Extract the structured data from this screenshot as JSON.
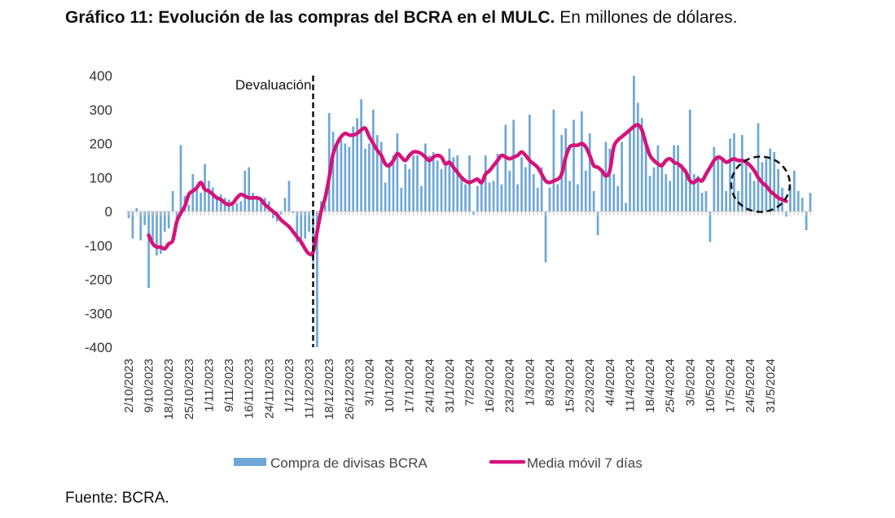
{
  "title": {
    "bold": "Gráfico 11: Evolución de las compras del BCRA en el MULC.",
    "normal": "En millones de dólares."
  },
  "source": "Fuente: BCRA.",
  "chart_data": {
    "type": "bar+line",
    "ylim": [
      -400,
      400
    ],
    "yticks": [
      400,
      300,
      200,
      100,
      0,
      -100,
      -200,
      -300,
      -400
    ],
    "grid": false,
    "legend_position": "bottom",
    "xtick_labels": [
      "2/10/2023",
      "9/10/2023",
      "18/10/2023",
      "25/10/2023",
      "1/11/2023",
      "9/11/2023",
      "16/11/2023",
      "24/11/2023",
      "1/12/2023",
      "11/12/2023",
      "18/12/2023",
      "26/12/2023",
      "3/1/2024",
      "10/1/2024",
      "17/1/2024",
      "24/1/2024",
      "31/1/2024",
      "7/2/2024",
      "16/2/2024",
      "23/2/2024",
      "1/3/2024",
      "8/3/2024",
      "15/3/2024",
      "22/3/2024",
      "4/4/2024",
      "11/4/2024",
      "18/4/2024",
      "25/4/2024",
      "3/5/2024",
      "10/5/2024",
      "17/5/2024",
      "24/5/2024",
      "31/5/2024"
    ],
    "xtick_index": [
      0,
      5,
      10,
      15,
      20,
      25,
      30,
      35,
      40,
      45,
      50,
      55,
      60,
      65,
      70,
      75,
      80,
      85,
      90,
      95,
      100,
      105,
      110,
      115,
      120,
      125,
      130,
      135,
      140,
      145,
      150,
      155,
      160
    ],
    "annotations": [
      {
        "text": "Devaluación",
        "at_index": 46,
        "style": "dashed vertical line"
      }
    ],
    "highlight": {
      "shape": "dashed circle",
      "around_index": 158
    },
    "series": [
      {
        "name": "Compra de divisas BCRA",
        "type": "bar",
        "color": "#6fa7d8",
        "values": [
          -20,
          -80,
          10,
          -85,
          -40,
          -225,
          -85,
          -130,
          -125,
          -60,
          -50,
          60,
          -30,
          195,
          45,
          20,
          110,
          65,
          55,
          140,
          90,
          70,
          45,
          50,
          40,
          35,
          20,
          25,
          30,
          120,
          130,
          55,
          45,
          35,
          40,
          30,
          -20,
          -30,
          -10,
          40,
          90,
          -5,
          -90,
          -100,
          -80,
          -60,
          -150,
          -400,
          30,
          20,
          290,
          235,
          210,
          210,
          200,
          190,
          250,
          275,
          330,
          185,
          200,
          300,
          225,
          205,
          85,
          145,
          165,
          230,
          70,
          140,
          125,
          165,
          165,
          75,
          200,
          165,
          175,
          150,
          125,
          135,
          185,
          160,
          165,
          105,
          80,
          165,
          -10,
          75,
          80,
          165,
          85,
          90,
          170,
          80,
          255,
          120,
          270,
          80,
          160,
          130,
          285,
          110,
          70,
          130,
          -150,
          70,
          300,
          80,
          225,
          245,
          90,
          270,
          80,
          295,
          120,
          230,
          60,
          -70,
          115,
          205,
          185,
          110,
          75,
          205,
          25,
          240,
          400,
          320,
          275,
          210,
          105,
          130,
          195,
          145,
          110,
          90,
          195,
          195,
          140,
          125,
          300,
          110,
          105,
          55,
          60,
          -90,
          190,
          160,
          155,
          60,
          215,
          230,
          60,
          225,
          150,
          115,
          90,
          260,
          145,
          155,
          185,
          175,
          125,
          70,
          -15,
          75,
          120,
          60,
          40,
          -55,
          55
        ]
      },
      {
        "name": "Media móvil 7 días",
        "type": "line",
        "color": "#d4137a",
        "values": [
          null,
          null,
          null,
          null,
          null,
          -70,
          -95,
          -105,
          -105,
          -110,
          -95,
          -85,
          -30,
          -5,
          15,
          50,
          60,
          70,
          85,
          65,
          60,
          50,
          40,
          35,
          25,
          20,
          25,
          40,
          50,
          45,
          40,
          40,
          40,
          35,
          20,
          10,
          0,
          -10,
          -25,
          -35,
          -45,
          -60,
          -75,
          -90,
          -110,
          -125,
          -120,
          -60,
          0,
          40,
          100,
          170,
          200,
          220,
          230,
          225,
          225,
          230,
          240,
          245,
          220,
          200,
          180,
          165,
          140,
          135,
          150,
          170,
          160,
          150,
          165,
          175,
          175,
          170,
          160,
          150,
          160,
          165,
          160,
          140,
          145,
          130,
          115,
          100,
          90,
          85,
          90,
          95,
          85,
          110,
          120,
          135,
          150,
          165,
          160,
          155,
          160,
          165,
          175,
          165,
          150,
          140,
          130,
          110,
          90,
          85,
          90,
          95,
          110,
          160,
          190,
          195,
          195,
          200,
          190,
          165,
          135,
          130,
          120,
          105,
          120,
          190,
          210,
          220,
          230,
          240,
          250,
          255,
          240,
          200,
          165,
          150,
          140,
          135,
          150,
          155,
          145,
          140,
          130,
          115,
          90,
          85,
          95,
          90,
          110,
          130,
          150,
          160,
          155,
          145,
          150,
          155,
          150,
          150,
          145,
          135,
          120,
          100,
          85,
          75,
          60,
          50,
          40,
          35,
          30
        ]
      }
    ]
  }
}
